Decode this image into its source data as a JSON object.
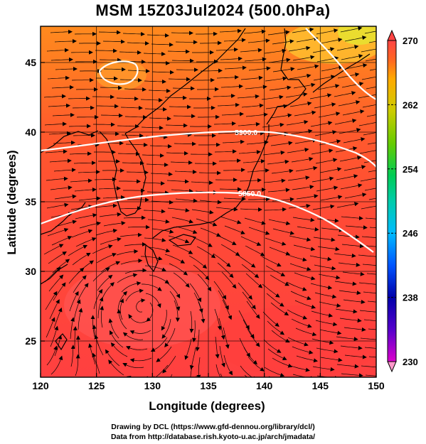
{
  "title": "MSM 15Z03Jul2024 (500.0hPa)",
  "credits": {
    "line1": "Drawing by DCL (https://www.gfd-dennou.org/library/dcl/)",
    "line2": "Data from http://database.rish.kyoto-u.ac.jp/arch/jmadata/"
  },
  "map": {
    "xlabel": "Longitude (degrees)",
    "ylabel": "Latitude  (degrees)",
    "xlim": [
      120,
      150
    ],
    "ylim": [
      22.4,
      47.6
    ],
    "xticks": [
      "120",
      "125",
      "130",
      "135",
      "140",
      "145",
      "150"
    ],
    "yticks": [
      "25",
      "30",
      "35",
      "40",
      "45"
    ],
    "contour_labels": [
      "5900.0",
      "5850.0"
    ]
  },
  "colorbar": {
    "range": [
      230,
      270
    ],
    "tick_labels": [
      "270",
      "262",
      "254",
      "246",
      "238",
      "230"
    ],
    "colors": [
      "#ff99cc",
      "#dd00cc",
      "#0000aa",
      "#0055ff",
      "#00bbff",
      "#00ccaa",
      "#00cc55",
      "#66cc00",
      "#cccc00",
      "#ffaa00",
      "#ff6622",
      "#ff4444"
    ]
  }
}
